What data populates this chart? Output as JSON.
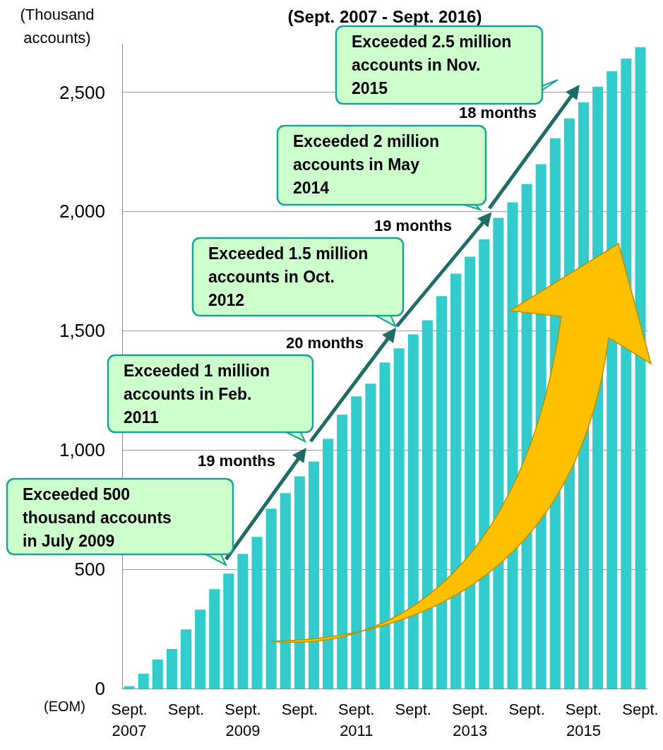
{
  "chart_data": {
    "type": "bar",
    "title": "(Sept. 2007 - Sept. 2016)",
    "ylabel": "(Thousand accounts)",
    "categories": [
      "Sept.\n2007",
      null,
      null,
      null,
      "Sept.",
      null,
      null,
      null,
      "Sept.\n2009",
      null,
      null,
      null,
      "Sept.",
      null,
      null,
      null,
      "Sept.\n2011",
      null,
      null,
      null,
      "Sept.",
      null,
      null,
      null,
      "Sept.\n2013",
      null,
      null,
      null,
      "Sept.",
      null,
      null,
      null,
      "Sept.\n2015",
      null,
      null,
      null,
      "Sept."
    ],
    "values": [
      10,
      62,
      122,
      166,
      248,
      331,
      417,
      482,
      565,
      636,
      754,
      819,
      890,
      952,
      1047,
      1148,
      1225,
      1278,
      1367,
      1426,
      1485,
      1544,
      1645,
      1739,
      1810,
      1884,
      1973,
      2038,
      2115,
      2198,
      2307,
      2390,
      2458,
      2523,
      2588,
      2641,
      2689
    ],
    "color": "#33cccc",
    "ylim": [
      0,
      2700
    ],
    "yticks": [
      0,
      500,
      {
        "value": 1000,
        "label": "1,000"
      },
      {
        "value": 1500,
        "label": "1,500"
      },
      {
        "value": 2000,
        "label": "2,000"
      },
      {
        "value": 2500,
        "label": "2,500"
      }
    ],
    "grid": "y",
    "annotations": [
      "Exceeded 500 thousand accounts in July 2009",
      "Exceeded 1 million accounts in Feb. 2011",
      "Exceeded 1.5 million accounts in Oct. 2012",
      "Exceeded 2 million accounts in May 2014",
      "Exceeded 2.5 million accounts in Nov. 2015",
      "19 months",
      "20 months",
      "19 months",
      "18 months",
      "(EOM)"
    ]
  }
}
